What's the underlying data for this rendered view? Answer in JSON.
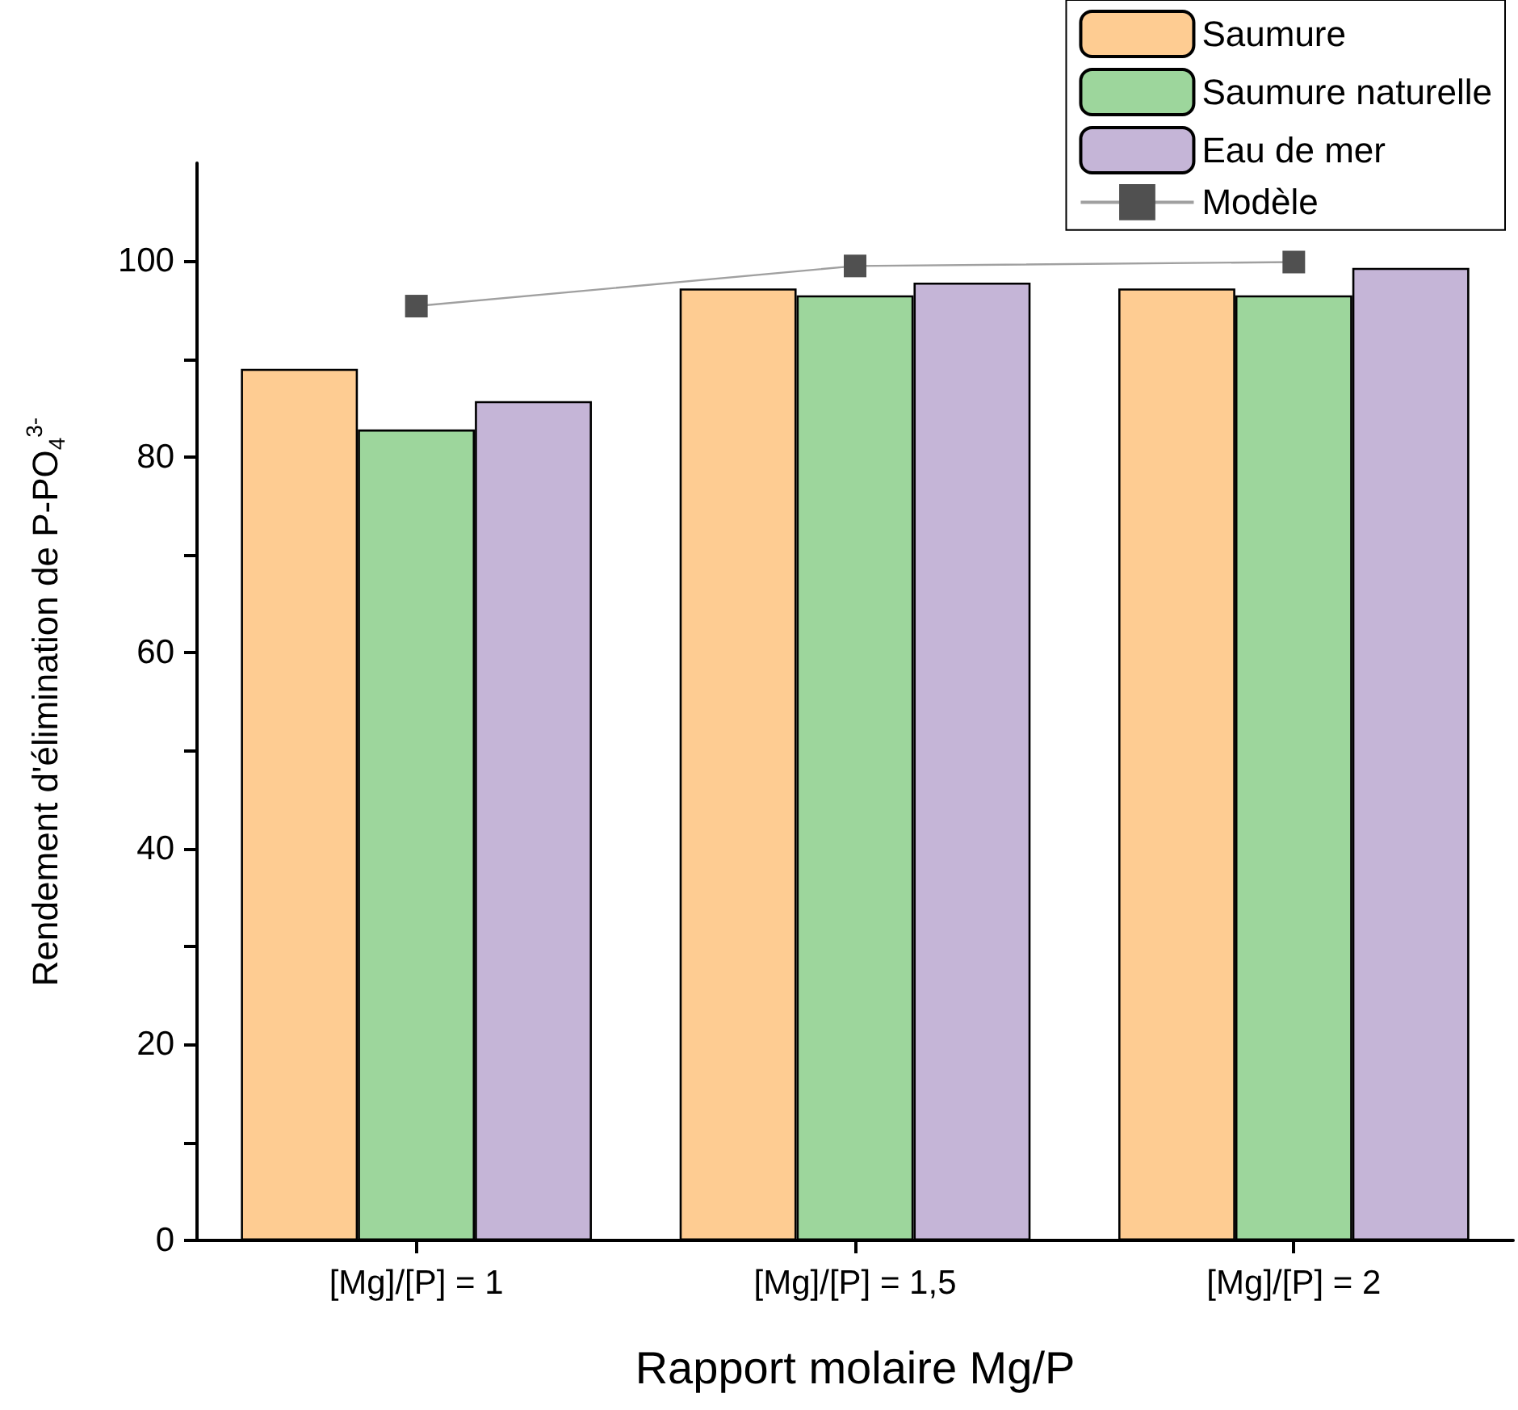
{
  "chart_data": {
    "type": "bar",
    "xlabel": "Rapport molaire Mg/P",
    "ylabel": "Rendement d'élimination de P-PO$_{4}$$^{3-}$",
    "categories": [
      "[Mg]/[P] = 1",
      "[Mg]/[P] = 1,5",
      "[Mg]/[P] = 2"
    ],
    "series": [
      {
        "name": "Saumure",
        "color": "#fecc92",
        "values": [
          89.0,
          97.2,
          97.2
        ]
      },
      {
        "name": "Saumure naturelle",
        "color": "#9dd69c",
        "values": [
          82.8,
          96.5,
          96.5
        ]
      },
      {
        "name": "Eau de mer",
        "color": "#c5b5d7",
        "values": [
          85.7,
          97.8,
          99.3
        ]
      },
      {
        "name": "Modèle",
        "type": "line",
        "color": "#505050",
        "values": [
          95.4,
          99.5,
          99.9
        ],
        "marker": "square"
      }
    ],
    "ylim": [
      0,
      110
    ],
    "yticks": [
      0,
      {
        "value": 10,
        "label": null
      },
      20,
      {
        "value": 30,
        "label": null
      },
      40,
      {
        "value": 50,
        "label": null
      },
      60,
      {
        "value": 70,
        "label": null
      },
      80,
      {
        "value": 90,
        "label": null
      },
      100
    ],
    "grid": false,
    "legend": "top right"
  }
}
